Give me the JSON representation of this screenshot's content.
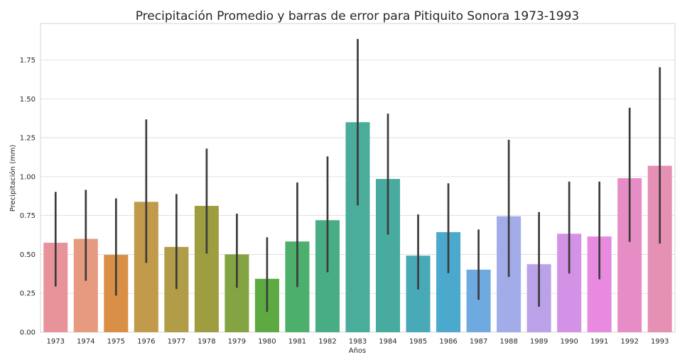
{
  "chart_data": {
    "type": "bar",
    "title": "Precipitación Promedio y barras de error para Pitiquito Sonora 1973-1993",
    "xlabel": "Años",
    "ylabel": "Precipitación (mm)",
    "ylim": [
      0,
      1.985
    ],
    "yticks": [
      "0.00",
      "0.25",
      "0.50",
      "0.75",
      "1.00",
      "1.25",
      "1.50",
      "1.75"
    ],
    "grid": true,
    "categories": [
      "1973",
      "1974",
      "1975",
      "1976",
      "1977",
      "1978",
      "1979",
      "1980",
      "1981",
      "1982",
      "1983",
      "1984",
      "1985",
      "1986",
      "1987",
      "1988",
      "1989",
      "1990",
      "1991",
      "1992",
      "1993"
    ],
    "values": [
      0.575,
      0.6,
      0.497,
      0.838,
      0.548,
      0.812,
      0.5,
      0.343,
      0.583,
      0.72,
      1.35,
      0.985,
      0.492,
      0.643,
      0.402,
      0.745,
      0.437,
      0.633,
      0.615,
      0.99,
      1.07
    ],
    "error_low": [
      0.293,
      0.33,
      0.235,
      0.445,
      0.277,
      0.505,
      0.285,
      0.13,
      0.29,
      0.385,
      0.815,
      0.627,
      0.275,
      0.38,
      0.208,
      0.355,
      0.163,
      0.377,
      0.34,
      0.58,
      0.57
    ],
    "error_high": [
      0.902,
      0.915,
      0.86,
      1.368,
      0.888,
      1.18,
      0.762,
      0.61,
      0.962,
      1.13,
      1.885,
      1.405,
      0.757,
      0.957,
      0.66,
      1.237,
      0.772,
      0.968,
      0.968,
      1.443,
      1.703
    ],
    "colors": [
      "#e8939a",
      "#e69a80",
      "#d98f45",
      "#c19a4b",
      "#b19c47",
      "#9e9e41",
      "#84a343",
      "#5daa43",
      "#4caf6c",
      "#48ad84",
      "#4aad9b",
      "#47ab9f",
      "#48a9b7",
      "#4aa9cc",
      "#6ea9e0",
      "#a2ace9",
      "#bba1e8",
      "#d492e6",
      "#e78ae0",
      "#e68dc5",
      "#e691b4"
    ],
    "error_color": "#3c3c3c"
  }
}
